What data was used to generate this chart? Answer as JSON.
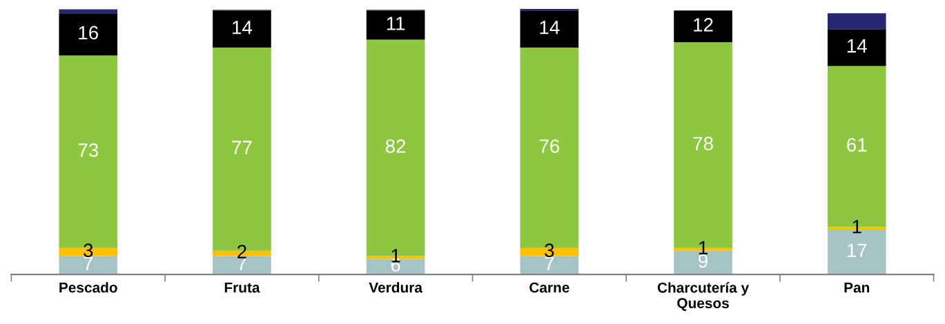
{
  "chart_data": {
    "type": "bar",
    "stacked": true,
    "categories": [
      "Pescado",
      "Fruta",
      "Verdura",
      "Carne",
      "Charcutería y\nQuesos",
      "Pan"
    ],
    "series": [
      {
        "color": "#a6c4c8",
        "values": [
          7,
          7,
          6,
          7,
          9,
          17
        ],
        "value_labels": [
          "7",
          "7",
          "6",
          "7",
          "9",
          "17"
        ]
      },
      {
        "color": "#ffc000",
        "values": [
          3,
          2,
          1,
          3,
          1,
          1
        ],
        "value_labels": [
          "3",
          "2",
          "1",
          "3",
          "1",
          "1"
        ]
      },
      {
        "color": "#8dc63f",
        "values": [
          73,
          77,
          82,
          76,
          78,
          61
        ],
        "value_labels": [
          "73",
          "77",
          "82",
          "76",
          "78",
          "61"
        ]
      },
      {
        "color": "#000000",
        "values": [
          16,
          14,
          11,
          14,
          12,
          14
        ],
        "value_labels": [
          "16",
          "14",
          "11",
          "14",
          "12",
          "14"
        ]
      },
      {
        "color": "#262673",
        "values": [
          1.5,
          0.3,
          0.3,
          0.7,
          0,
          6
        ],
        "value_labels": [
          null,
          null,
          null,
          null,
          null,
          null
        ]
      }
    ],
    "grid": false,
    "legend": false
  }
}
